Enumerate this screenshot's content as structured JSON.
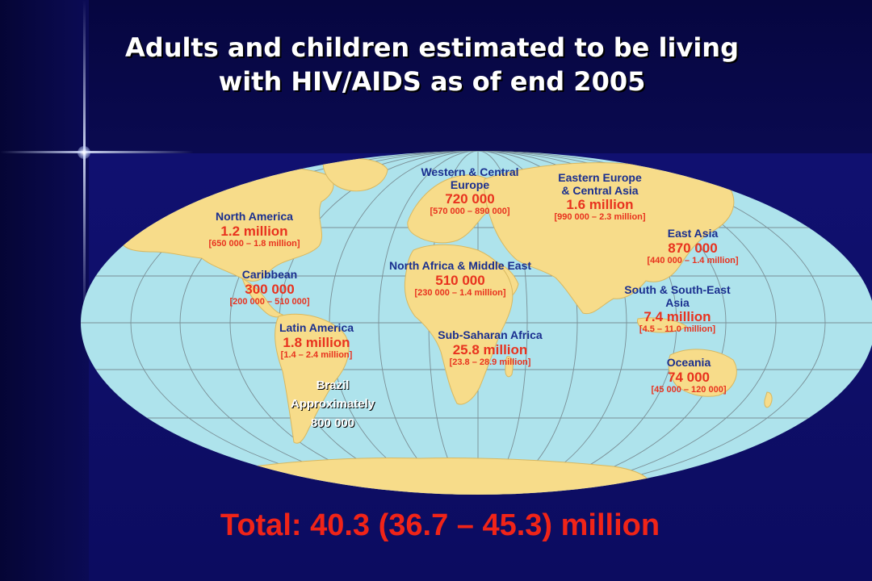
{
  "title": {
    "line1": "Adults and children estimated to be living",
    "line2": "with HIV/AIDS as of end 2005"
  },
  "regions": {
    "north_america": {
      "name": "North America",
      "value": "1.2 million",
      "range": "[650 000 – 1.8 million]"
    },
    "caribbean": {
      "name": "Caribbean",
      "value": "300 000",
      "range": "[200 000 – 510 000]"
    },
    "latin_america": {
      "name": "Latin America",
      "value": "1.8 million",
      "range": "[1.4 – 2.4 million]"
    },
    "brazil": {
      "name": "Brazil",
      "approx": "Approximately",
      "value": "800 000"
    },
    "western_central_europe": {
      "name_line1": "Western & Central",
      "name_line2": "Europe",
      "value": "720 000",
      "range": "[570 000 – 890 000]"
    },
    "north_africa_middle_east": {
      "name": "North Africa & Middle East",
      "value": "510 000",
      "range": "[230 000 – 1.4 million]"
    },
    "sub_saharan_africa": {
      "name": "Sub-Saharan Africa",
      "value": "25.8 million",
      "range": "[23.8 – 28.9 million]"
    },
    "eastern_europe_central_asia": {
      "name_line1": "Eastern Europe",
      "name_line2": "& Central Asia",
      "value": "1.6 million",
      "range": "[990 000 – 2.3 million]"
    },
    "east_asia": {
      "name": "East Asia",
      "value": "870 000",
      "range": "[440 000 – 1.4 million]"
    },
    "south_southeast_asia": {
      "name_line1": "South & South-East",
      "name_line2": "Asia",
      "value": "7.4 million",
      "range": "[4.5 – 11.0 million]"
    },
    "oceania": {
      "name": "Oceania",
      "value": "74 000",
      "range": "[45 000 – 120 000]"
    }
  },
  "total": "Total: 40.3 (36.7 – 45.3) million",
  "colors": {
    "ocean": "#aee3ec",
    "land": "#f7dc8a",
    "region_text": "#1a2f8f",
    "value_text": "#e8321e",
    "background": "#0a0a4a"
  }
}
